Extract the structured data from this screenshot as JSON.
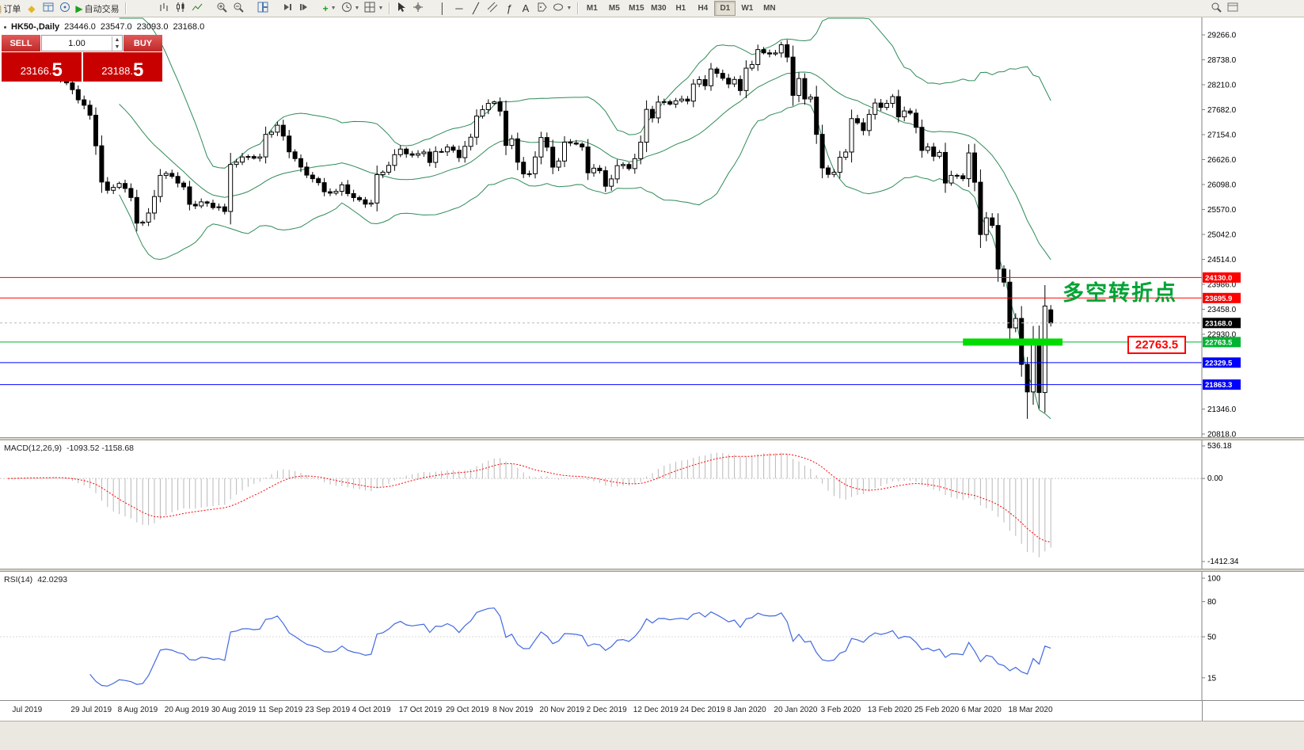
{
  "toolbar": {
    "new_order_label": "订单",
    "autotrading_label": "自动交易",
    "timeframes": [
      "M1",
      "M5",
      "M15",
      "M30",
      "H1",
      "H4",
      "D1",
      "W1",
      "MN"
    ],
    "active_timeframe": "D1"
  },
  "symbol_info": {
    "name": "HK50-,Daily",
    "open": "23446.0",
    "high": "23547.0",
    "low": "23093.0",
    "close": "23168.0"
  },
  "one_click": {
    "sell_label": "SELL",
    "buy_label": "BUY",
    "volume": "1.00",
    "sell_price_main": "23166.",
    "sell_price_big": "5",
    "buy_price_main": "23188.",
    "buy_price_big": "5"
  },
  "price_axis": {
    "ticks": [
      "29266.0",
      "28738.0",
      "28210.0",
      "27682.0",
      "27154.0",
      "26626.0",
      "26098.0",
      "25570.0",
      "25042.0",
      "24514.0",
      "23986.0",
      "23458.0",
      "22930.0",
      "21346.0",
      "20818.0"
    ]
  },
  "hlines": [
    {
      "name": "resistance-line-upper",
      "value": 24130.0,
      "label": "24130.0",
      "color": "#ff0000"
    },
    {
      "name": "resistance-line-lower",
      "value": 23695.9,
      "label": "23695.9",
      "color": "#ff0000"
    },
    {
      "name": "current-price",
      "value": 23168.0,
      "label": "23168.0",
      "color": "#000000",
      "line": "#bbbbbb",
      "style": "dash"
    },
    {
      "name": "support-line-green",
      "value": 22763.5,
      "label": "22763.5",
      "color": "#00b432"
    },
    {
      "name": "support-line-blue-1",
      "value": 22329.5,
      "label": "22329.5",
      "color": "#0000ff"
    },
    {
      "name": "support-line-blue-2",
      "value": 21863.3,
      "label": "21863.3",
      "color": "#0000ff"
    }
  ],
  "annotations": {
    "turning_point_text": "多空转折点",
    "turning_point_color": "#00a335",
    "price_callout": "22763.5",
    "callout_color": "#ff0000",
    "highlight_bar": {
      "price": 22763.5,
      "from_bar": 163,
      "to_bar": 180,
      "color": "#00dc00"
    }
  },
  "indicators": {
    "macd": {
      "label": "MACD(12,26,9)",
      "values": "-1093.52 -1158.68",
      "axis": [
        "536.18",
        "0.00",
        "-1412.34"
      ]
    },
    "rsi": {
      "label": "RSI(14)",
      "value": "42.0293",
      "axis": [
        "100",
        "80",
        "50",
        "15"
      ]
    }
  },
  "colors": {
    "up_candle": "#ffffff",
    "down_candle": "#000000",
    "candle_border": "#000000",
    "bollinger": "#2e8b57",
    "macd_histogram": "#b8b8b8",
    "macd_signal": "#ff0000",
    "rsi_line": "#4169e1",
    "axis": "#808080"
  },
  "chart_data": {
    "type": "candlestick",
    "symbol": "HK50",
    "timeframe": "Daily",
    "n_bars": 179,
    "wobble_amp": 55,
    "last_bar": {
      "open": 23446.0,
      "high": 23547.0,
      "low": 23093.0,
      "close": 23168.0
    },
    "low_overrides": {
      "174": 21139,
      "176": 21355
    },
    "overlays": [
      {
        "name": "Bollinger Bands",
        "period": 20,
        "deviation": 2
      }
    ],
    "panes": [
      {
        "type": "macd",
        "fast": 12,
        "slow": 26,
        "signal": 9
      },
      {
        "type": "rsi",
        "period": 14
      }
    ],
    "close_waypoints": [
      [
        0,
        28470
      ],
      [
        2,
        28550
      ],
      [
        5,
        28500
      ],
      [
        8,
        28594
      ],
      [
        10,
        28250
      ],
      [
        11,
        28106
      ],
      [
        13,
        27777
      ],
      [
        14,
        27565
      ],
      [
        15,
        26918
      ],
      [
        16,
        26151
      ],
      [
        17,
        25976
      ],
      [
        19,
        26120
      ],
      [
        21,
        25824
      ],
      [
        22,
        25281
      ],
      [
        23,
        25302
      ],
      [
        24,
        25495
      ],
      [
        26,
        26292
      ],
      [
        28,
        26270
      ],
      [
        30,
        26048
      ],
      [
        31,
        25680
      ],
      [
        34,
        25703
      ],
      [
        36,
        25626
      ],
      [
        37,
        25528
      ],
      [
        38,
        26523
      ],
      [
        41,
        26691
      ],
      [
        43,
        26683
      ],
      [
        44,
        27159
      ],
      [
        46,
        27353
      ],
      [
        47,
        27124
      ],
      [
        48,
        26790
      ],
      [
        50,
        26468
      ],
      [
        52,
        26222
      ],
      [
        54,
        25945
      ],
      [
        56,
        25955
      ],
      [
        57,
        26092
      ],
      [
        59,
        25821
      ],
      [
        61,
        25683
      ],
      [
        62,
        25707
      ],
      [
        63,
        26308
      ],
      [
        65,
        26503
      ],
      [
        67,
        26848
      ],
      [
        69,
        26719
      ],
      [
        71,
        26786
      ],
      [
        72,
        26566
      ],
      [
        73,
        26797
      ],
      [
        75,
        26891
      ],
      [
        77,
        26667
      ],
      [
        78,
        26906
      ],
      [
        79,
        27100
      ],
      [
        80,
        27547
      ],
      [
        81,
        27683
      ],
      [
        83,
        27847
      ],
      [
        84,
        27651
      ],
      [
        85,
        26926
      ],
      [
        86,
        27065
      ],
      [
        87,
        26571
      ],
      [
        88,
        26323
      ],
      [
        89,
        26327
      ],
      [
        90,
        26681
      ],
      [
        91,
        27093
      ],
      [
        92,
        26889
      ],
      [
        93,
        26466
      ],
      [
        94,
        26595
      ],
      [
        95,
        26993
      ],
      [
        97,
        26954
      ],
      [
        98,
        26893
      ],
      [
        99,
        26346
      ],
      [
        100,
        26444
      ],
      [
        101,
        26391
      ],
      [
        102,
        26062
      ],
      [
        103,
        26217
      ],
      [
        104,
        26498
      ],
      [
        106,
        26436
      ],
      [
        107,
        26645
      ],
      [
        108,
        26994
      ],
      [
        109,
        27688
      ],
      [
        110,
        27508
      ],
      [
        111,
        27843
      ],
      [
        113,
        27800
      ],
      [
        114,
        27871
      ],
      [
        115,
        27906
      ],
      [
        116,
        27864
      ],
      [
        117,
        28225
      ],
      [
        118,
        28319
      ],
      [
        119,
        28189
      ],
      [
        120,
        28543
      ],
      [
        121,
        28451
      ],
      [
        123,
        28226
      ],
      [
        124,
        28322
      ],
      [
        125,
        28087
      ],
      [
        126,
        28561
      ],
      [
        127,
        28638
      ],
      [
        128,
        28954
      ],
      [
        129,
        28885
      ],
      [
        131,
        28883
      ],
      [
        132,
        29056
      ],
      [
        133,
        28795
      ],
      [
        134,
        27985
      ],
      [
        135,
        28341
      ],
      [
        136,
        27909
      ],
      [
        137,
        27949
      ],
      [
        138,
        27160
      ],
      [
        139,
        26449
      ],
      [
        140,
        26313
      ],
      [
        141,
        26357
      ],
      [
        142,
        26675
      ],
      [
        143,
        26786
      ],
      [
        144,
        27493
      ],
      [
        145,
        27404
      ],
      [
        146,
        27241
      ],
      [
        147,
        27583
      ],
      [
        148,
        27823
      ],
      [
        149,
        27730
      ],
      [
        150,
        27816
      ],
      [
        151,
        27959
      ],
      [
        152,
        27530
      ],
      [
        153,
        27655
      ],
      [
        154,
        27609
      ],
      [
        155,
        27309
      ],
      [
        156,
        26820
      ],
      [
        157,
        26893
      ],
      [
        158,
        26696
      ],
      [
        159,
        26778
      ],
      [
        160,
        26130
      ],
      [
        161,
        26292
      ],
      [
        162,
        26284
      ],
      [
        163,
        26222
      ],
      [
        164,
        26767
      ],
      [
        165,
        26147
      ],
      [
        166,
        25040
      ],
      [
        167,
        25392
      ],
      [
        168,
        25232
      ],
      [
        169,
        24309
      ],
      [
        170,
        24032
      ],
      [
        171,
        23064
      ],
      [
        172,
        23264
      ],
      [
        173,
        22292
      ],
      [
        174,
        21709
      ],
      [
        175,
        22805
      ],
      [
        176,
        21696
      ],
      [
        177,
        23527
      ],
      [
        178,
        23168
      ]
    ],
    "x_ticks": [
      {
        "bar": 1,
        "label": "Jul 2019"
      },
      {
        "bar": 11,
        "label": "29 Jul 2019"
      },
      {
        "bar": 19,
        "label": "8 Aug 2019"
      },
      {
        "bar": 27,
        "label": "20 Aug 2019"
      },
      {
        "bar": 35,
        "label": "30 Aug 2019"
      },
      {
        "bar": 43,
        "label": "11 Sep 2019"
      },
      {
        "bar": 51,
        "label": "23 Sep 2019"
      },
      {
        "bar": 59,
        "label": "4 Oct 2019"
      },
      {
        "bar": 67,
        "label": "17 Oct 2019"
      },
      {
        "bar": 75,
        "label": "29 Oct 2019"
      },
      {
        "bar": 83,
        "label": "8 Nov 2019"
      },
      {
        "bar": 91,
        "label": "20 Nov 2019"
      },
      {
        "bar": 99,
        "label": "2 Dec 2019"
      },
      {
        "bar": 107,
        "label": "12 Dec 2019"
      },
      {
        "bar": 115,
        "label": "24 Dec 2019"
      },
      {
        "bar": 123,
        "label": "8 Jan 2020"
      },
      {
        "bar": 131,
        "label": "20 Jan 2020"
      },
      {
        "bar": 139,
        "label": "3 Feb 2020"
      },
      {
        "bar": 147,
        "label": "13 Feb 2020"
      },
      {
        "bar": 155,
        "label": "25 Feb 2020"
      },
      {
        "bar": 163,
        "label": "6 Mar 2020"
      },
      {
        "bar": 171,
        "label": "18 Mar 2020"
      }
    ]
  }
}
